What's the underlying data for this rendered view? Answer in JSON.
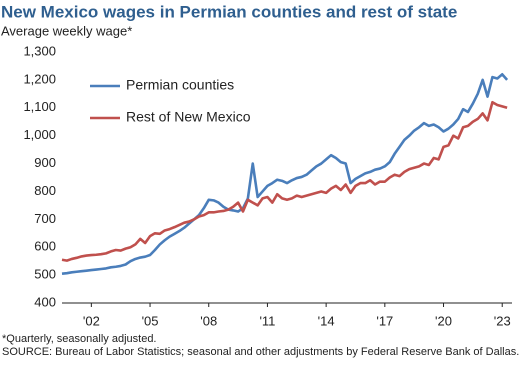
{
  "chart_data": {
    "type": "line",
    "title": "New Mexico wages in Permian counties and rest of state",
    "subtitle": "Average  weekly wage*",
    "notes": [
      "*Quarterly,  seasonally adjusted.",
      "SOURCE: Bureau of Labor Statistics; seasonal and other adjustments by Federal Reserve Bank of Dallas."
    ],
    "x": [
      2000.5,
      2000.75,
      2001,
      2001.25,
      2001.5,
      2001.75,
      2002,
      2002.25,
      2002.5,
      2002.75,
      2003,
      2003.25,
      2003.5,
      2003.75,
      2004,
      2004.25,
      2004.5,
      2004.75,
      2005,
      2005.25,
      2005.5,
      2005.75,
      2006,
      2006.25,
      2006.5,
      2006.75,
      2007,
      2007.25,
      2007.5,
      2007.75,
      2008,
      2008.25,
      2008.5,
      2008.75,
      2009,
      2009.25,
      2009.5,
      2009.75,
      2010,
      2010.25,
      2010.5,
      2010.75,
      2011,
      2011.25,
      2011.5,
      2011.75,
      2012,
      2012.25,
      2012.5,
      2012.75,
      2013,
      2013.25,
      2013.5,
      2013.75,
      2014,
      2014.25,
      2014.5,
      2014.75,
      2015,
      2015.25,
      2015.5,
      2015.75,
      2016,
      2016.25,
      2016.5,
      2016.75,
      2017,
      2017.25,
      2017.5,
      2017.75,
      2018,
      2018.25,
      2018.5,
      2018.75,
      2019,
      2019.25,
      2019.5,
      2019.75,
      2020,
      2020.25,
      2020.5,
      2020.75,
      2021,
      2021.25,
      2021.5,
      2021.75,
      2022,
      2022.25,
      2022.5,
      2022.75,
      2023,
      2023.25
    ],
    "series": [
      {
        "name": "Permian counties",
        "color": "#4a7ebb",
        "values": [
          505,
          507,
          510,
          512,
          514,
          516,
          518,
          520,
          522,
          524,
          528,
          530,
          533,
          538,
          550,
          558,
          563,
          566,
          572,
          590,
          610,
          625,
          638,
          648,
          658,
          670,
          685,
          700,
          715,
          740,
          770,
          768,
          760,
          745,
          735,
          732,
          728,
          740,
          775,
          900,
          780,
          800,
          820,
          830,
          842,
          838,
          830,
          840,
          848,
          852,
          860,
          875,
          890,
          900,
          915,
          930,
          920,
          905,
          900,
          830,
          845,
          855,
          865,
          870,
          878,
          882,
          890,
          905,
          935,
          960,
          985,
          1000,
          1018,
          1030,
          1045,
          1035,
          1040,
          1030,
          1015,
          1025,
          1040,
          1060,
          1095,
          1085,
          1115,
          1150,
          1200,
          1140,
          1210,
          1205,
          1220,
          1200
        ]
      },
      {
        "name": "Rest of New Mexico",
        "color": "#c0504d",
        "values": [
          555,
          552,
          558,
          562,
          567,
          570,
          572,
          573,
          575,
          578,
          585,
          590,
          588,
          595,
          600,
          610,
          630,
          615,
          640,
          650,
          648,
          660,
          665,
          672,
          680,
          688,
          692,
          700,
          710,
          715,
          725,
          725,
          728,
          730,
          735,
          745,
          760,
          728,
          770,
          760,
          750,
          775,
          780,
          760,
          790,
          775,
          770,
          775,
          785,
          780,
          785,
          790,
          795,
          800,
          795,
          810,
          820,
          805,
          825,
          795,
          820,
          830,
          830,
          840,
          825,
          835,
          835,
          850,
          860,
          855,
          870,
          880,
          885,
          890,
          900,
          895,
          920,
          915,
          960,
          965,
          1000,
          990,
          1030,
          1035,
          1050,
          1060,
          1080,
          1055,
          1120,
          1110,
          1105,
          1100
        ]
      }
    ],
    "xlim": [
      2000.5,
      2023.5
    ],
    "xticks": [
      {
        "value": 2002,
        "label": "'02"
      },
      {
        "value": 2005,
        "label": "'05"
      },
      {
        "value": 2008,
        "label": "'08"
      },
      {
        "value": 2011,
        "label": "'11"
      },
      {
        "value": 2014,
        "label": "'14"
      },
      {
        "value": 2017,
        "label": "'17"
      },
      {
        "value": 2020,
        "label": "'20"
      },
      {
        "value": 2023,
        "label": "'23"
      }
    ],
    "ylim": [
      400,
      1300
    ],
    "yticks": [
      400,
      500,
      600,
      700,
      800,
      900,
      {
        "value": 1000,
        "label": "1,000"
      },
      {
        "value": 1100,
        "label": "1,100"
      },
      {
        "value": 1200,
        "label": "1,200"
      },
      {
        "value": 1300,
        "label": "1,300"
      }
    ],
    "grid": false,
    "legend": "upper-left"
  }
}
